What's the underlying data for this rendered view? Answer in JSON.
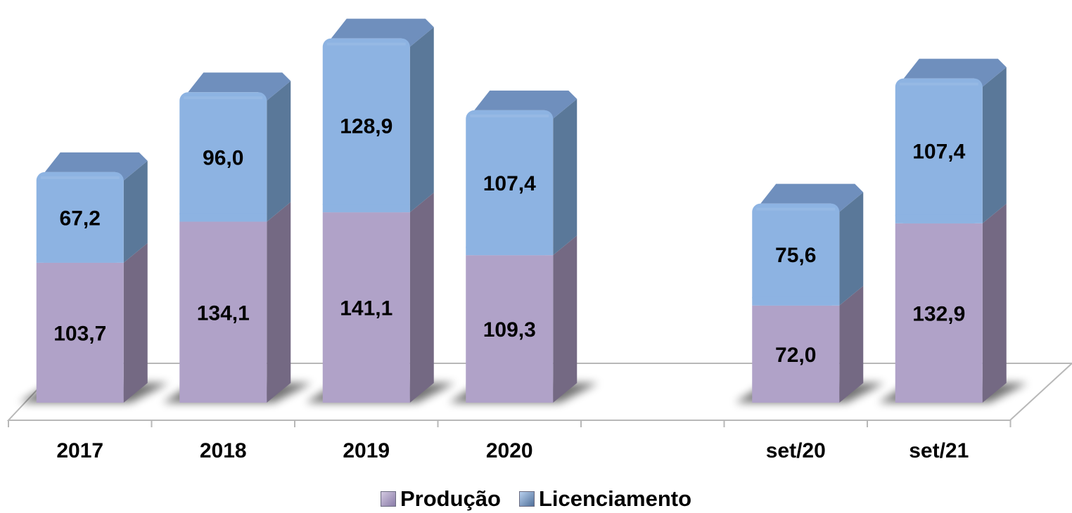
{
  "chart_data": {
    "type": "bar",
    "stacked": true,
    "style": "3d-columns",
    "categories": [
      "2017",
      "2018",
      "2019",
      "2020",
      "",
      "set/20",
      "set/21"
    ],
    "series": [
      {
        "name": "Produção",
        "values": [
          103.7,
          134.1,
          141.1,
          109.3,
          null,
          72.0,
          132.9
        ],
        "labels": [
          "103,7",
          "134,1",
          "141,1",
          "109,3",
          "",
          "72,0",
          "132,9"
        ]
      },
      {
        "name": "Licenciamento",
        "values": [
          67.2,
          96.0,
          128.9,
          107.4,
          null,
          75.6,
          107.4
        ],
        "labels": [
          "67,2",
          "96,0",
          "128,9",
          "107,4",
          "",
          "75,6",
          "107,4"
        ]
      }
    ],
    "title": "",
    "xlabel": "",
    "ylabel": "",
    "ylim": [
      0,
      280
    ],
    "grid": false,
    "legend_position": "bottom",
    "colors": {
      "Produção": "#b0a2c8",
      "Licenciamento": "#8db3e2"
    }
  }
}
